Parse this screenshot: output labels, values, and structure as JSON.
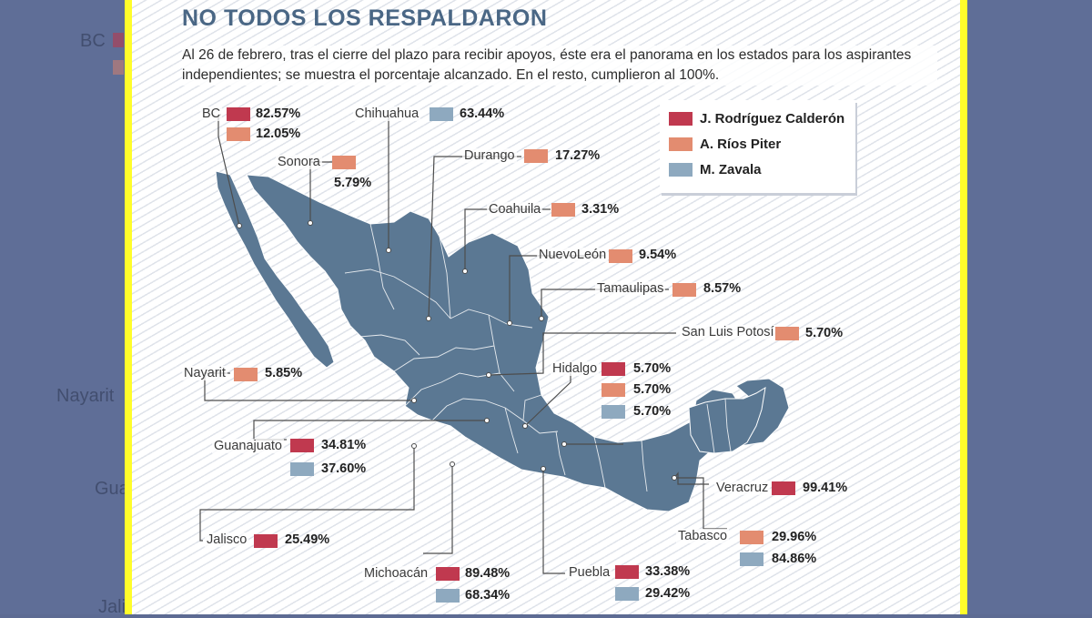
{
  "title": "NO TODOS LOS RESPALDARON",
  "subtitle": "Al 26 de febrero, tras el cierre del plazo para recibir apoyos, éste era el panorama en los estados para los aspirantes independientes; se muestra el porcentaje alcanzado. En el resto, cumplieron al 100%.",
  "colors": {
    "rodriguez": "#c0394f",
    "rios": "#e38c70",
    "zavala": "#8ea9bf",
    "map": "#5b7893",
    "accent_title": "#4a6785",
    "frame": "#fffd2a"
  },
  "legend": [
    {
      "label": "J. Rodríguez Calderón",
      "candidate": "rodriguez"
    },
    {
      "label": "A. Ríos Piter",
      "candidate": "rios"
    },
    {
      "label": "M. Zavala",
      "candidate": "zavala"
    }
  ],
  "background_ghost": {
    "bc": "BC",
    "nayarit": "Nayarit",
    "guanajuato": "Gua",
    "jalisco": "Jali"
  },
  "states": {
    "bc": {
      "name": "BC",
      "values": [
        {
          "candidate": "rodriguez",
          "value": "82.57%"
        },
        {
          "candidate": "rios",
          "value": "12.05%"
        }
      ]
    },
    "chihuahua": {
      "name": "Chihuahua",
      "values": [
        {
          "candidate": "zavala",
          "value": "63.44%"
        }
      ]
    },
    "sonora": {
      "name": "Sonora",
      "values": [
        {
          "candidate": "rios",
          "value": "5.79%"
        }
      ]
    },
    "durango": {
      "name": "Durango",
      "values": [
        {
          "candidate": "rios",
          "value": "17.27%"
        }
      ]
    },
    "coahuila": {
      "name": "Coahuila",
      "values": [
        {
          "candidate": "rios",
          "value": "3.31%"
        }
      ]
    },
    "nuevoleon": {
      "name": "NuevoLeón",
      "values": [
        {
          "candidate": "rios",
          "value": "9.54%"
        }
      ]
    },
    "tamaulipas": {
      "name": "Tamaulipas",
      "values": [
        {
          "candidate": "rios",
          "value": "8.57%"
        }
      ]
    },
    "slp": {
      "name": "San Luis Potosí",
      "values": [
        {
          "candidate": "rios",
          "value": "5.70%"
        }
      ]
    },
    "nayarit": {
      "name": "Nayarit",
      "values": [
        {
          "candidate": "rios",
          "value": "5.85%"
        }
      ]
    },
    "hidalgo": {
      "name": "Hidalgo",
      "values": [
        {
          "candidate": "rodriguez",
          "value": "5.70%"
        },
        {
          "candidate": "rios",
          "value": "5.70%"
        },
        {
          "candidate": "zavala",
          "value": "5.70%"
        }
      ]
    },
    "guanajuato": {
      "name": "Guanajuato",
      "values": [
        {
          "candidate": "rodriguez",
          "value": "34.81%"
        },
        {
          "candidate": "zavala",
          "value": "37.60%"
        }
      ]
    },
    "veracruz": {
      "name": "Veracruz",
      "values": [
        {
          "candidate": "rodriguez",
          "value": "99.41%"
        }
      ]
    },
    "jalisco": {
      "name": "Jalisco",
      "values": [
        {
          "candidate": "rodriguez",
          "value": "25.49%"
        }
      ]
    },
    "tabasco": {
      "name": "Tabasco",
      "values": [
        {
          "candidate": "rios",
          "value": "29.96%"
        },
        {
          "candidate": "zavala",
          "value": "84.86%"
        }
      ]
    },
    "michoacan": {
      "name": "Michoacán",
      "values": [
        {
          "candidate": "rodriguez",
          "value": "89.48%"
        },
        {
          "candidate": "zavala",
          "value": "68.34%"
        }
      ]
    },
    "puebla": {
      "name": "Puebla",
      "values": [
        {
          "candidate": "rodriguez",
          "value": "33.38%"
        },
        {
          "candidate": "zavala",
          "value": "29.42%"
        }
      ]
    }
  }
}
